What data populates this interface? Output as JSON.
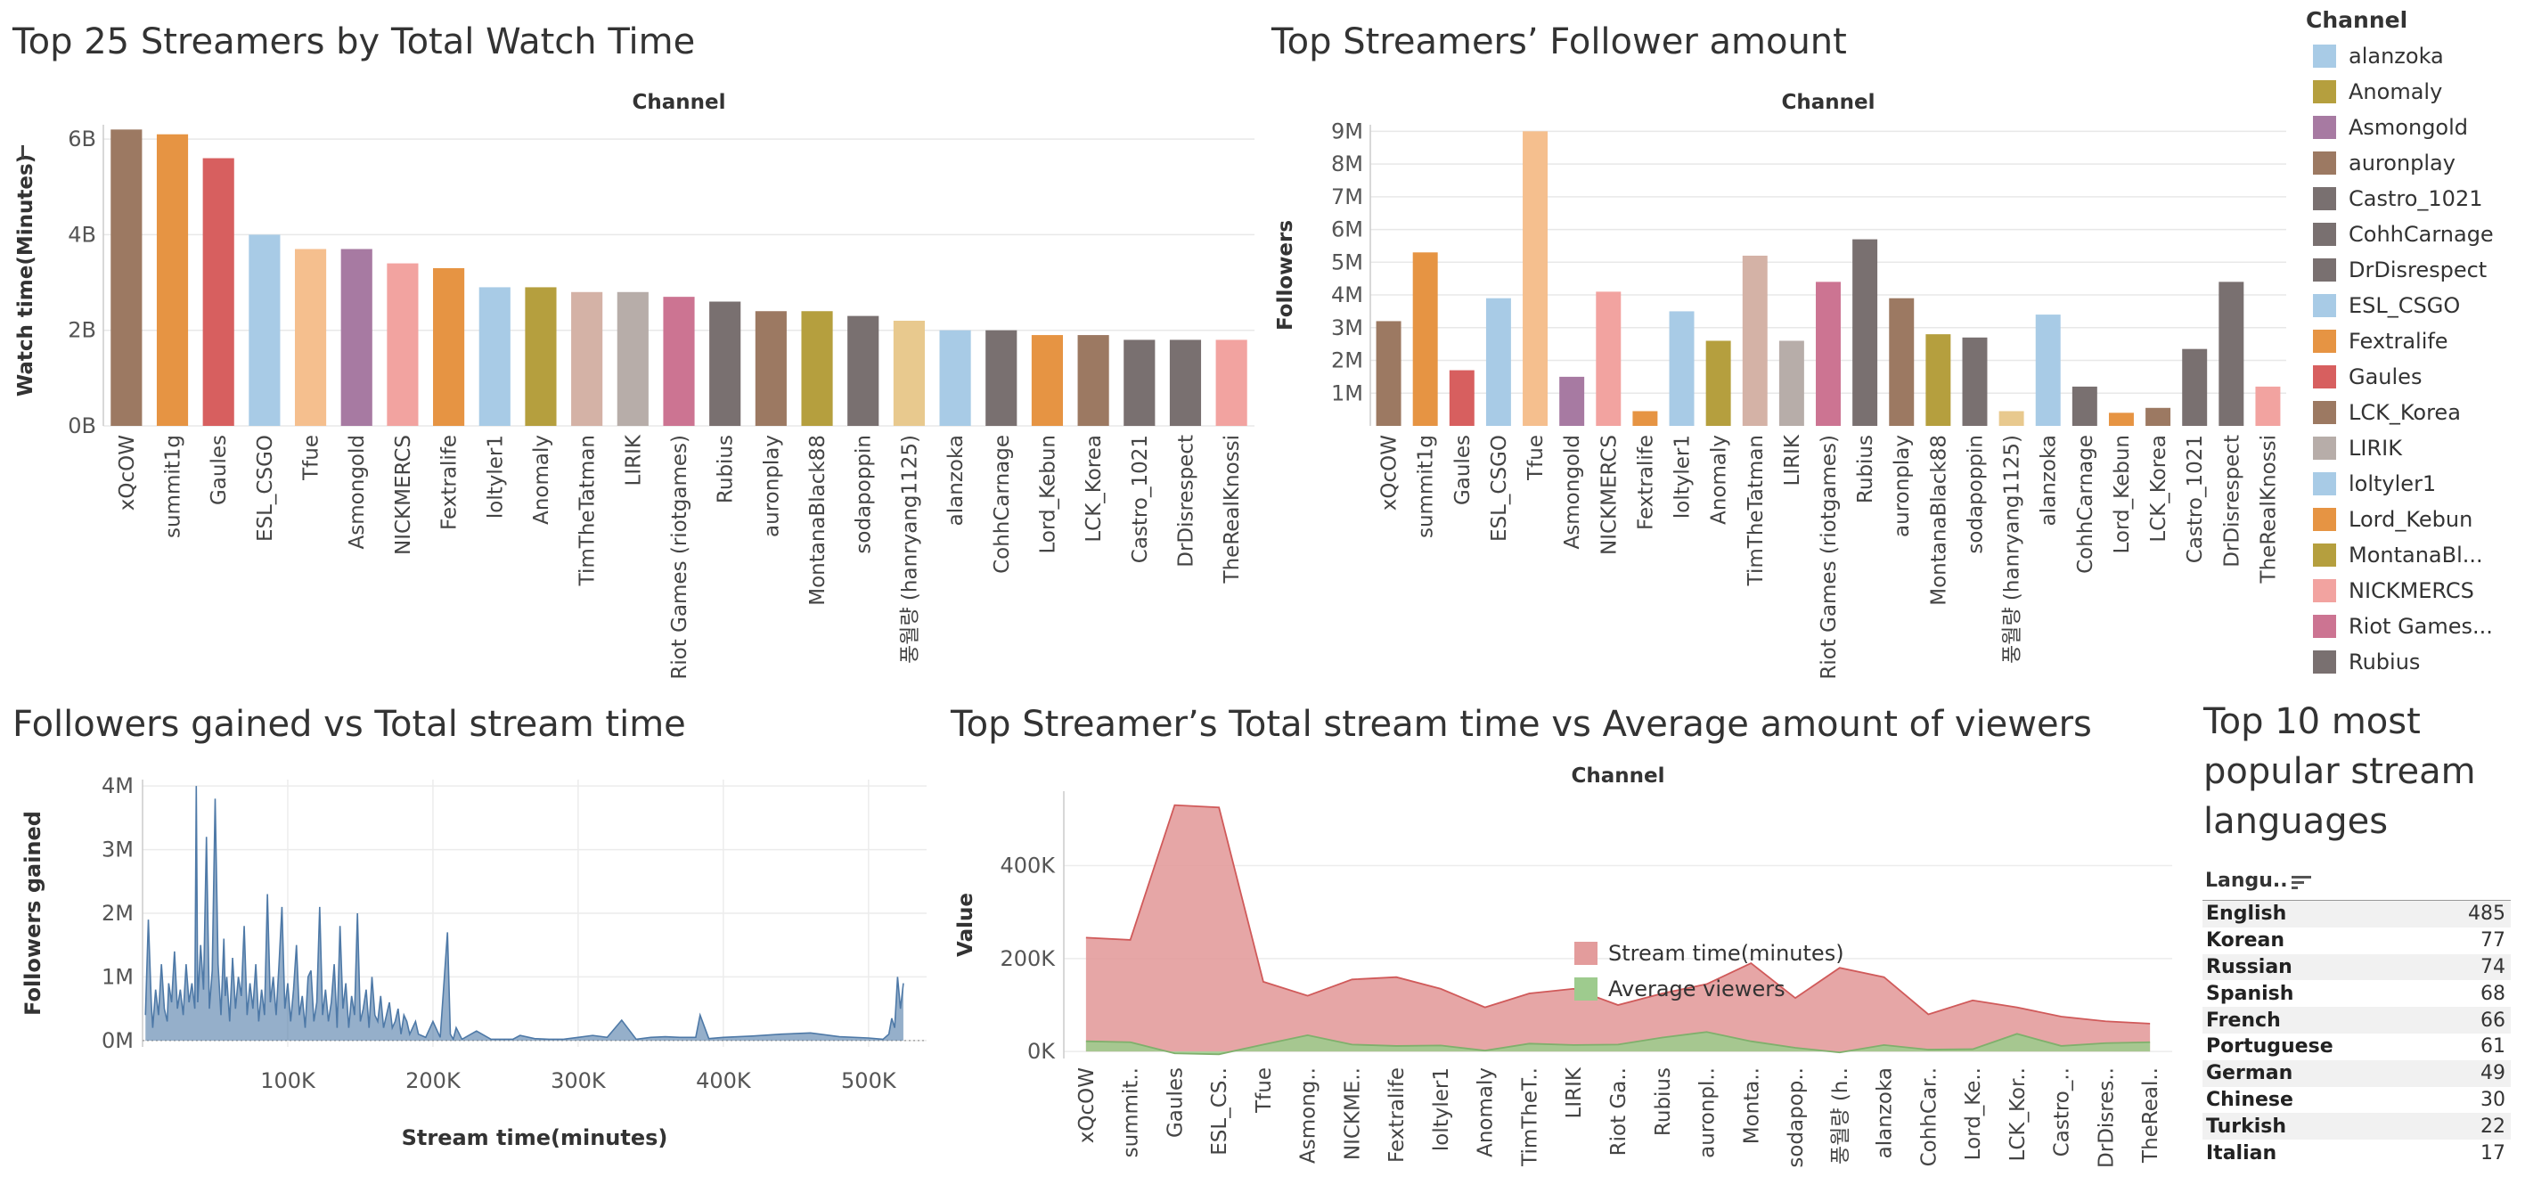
{
  "titles": {
    "watch": "Top 25 Streamers by Total Watch Time",
    "followers": "Top Streamers’ Follower amount",
    "gained": "Followers gained vs Total stream time",
    "streamtime": "Top Streamer’s Total stream time vs Average amount of viewers",
    "languages": "Top 10 most popular stream languages"
  },
  "legend": {
    "title": "Channel",
    "items": [
      {
        "label": "alanzoka",
        "color": "#A8CBE6"
      },
      {
        "label": "Anomaly",
        "color": "#B59F3E"
      },
      {
        "label": "Asmongold",
        "color": "#A77AA2"
      },
      {
        "label": "auronplay",
        "color": "#9C7962"
      },
      {
        "label": "Castro_1021",
        "color": "#797070"
      },
      {
        "label": "CohhCarnage",
        "color": "#797070"
      },
      {
        "label": "DrDisrespect",
        "color": "#797070"
      },
      {
        "label": "ESL_CSGO",
        "color": "#A8CBE6"
      },
      {
        "label": "Fextralife",
        "color": "#E69443"
      },
      {
        "label": "Gaules",
        "color": "#D75F5F"
      },
      {
        "label": "LCK_Korea",
        "color": "#9C7962"
      },
      {
        "label": "LIRIK",
        "color": "#B7ADA9"
      },
      {
        "label": "loltyler1",
        "color": "#A8CBE6"
      },
      {
        "label": "Lord_Kebun",
        "color": "#E69443"
      },
      {
        "label": "MontanaBl...",
        "color": "#B59F3E"
      },
      {
        "label": "NICKMERCS",
        "color": "#F2A3A0"
      },
      {
        "label": "Riot Games...",
        "color": "#CC7492"
      },
      {
        "label": "Rubius",
        "color": "#797070"
      }
    ]
  },
  "languages": {
    "header": "Langu..",
    "rows": [
      {
        "name": "English",
        "value": "485"
      },
      {
        "name": "Korean",
        "value": "77"
      },
      {
        "name": "Russian",
        "value": "74"
      },
      {
        "name": "Spanish",
        "value": "68"
      },
      {
        "name": "French",
        "value": "66"
      },
      {
        "name": "Portuguese",
        "value": "61"
      },
      {
        "name": "German",
        "value": "49"
      },
      {
        "name": "Chinese",
        "value": "30"
      },
      {
        "name": "Turkish",
        "value": "22"
      },
      {
        "name": "Italian",
        "value": "17"
      }
    ]
  },
  "chart_data": [
    {
      "type": "bar",
      "title": "Top 25 Streamers by Total Watch Time",
      "header": "Channel",
      "xlabel": "",
      "ylabel": "Watch time(Minutes)",
      "ylim": [
        0,
        6.3
      ],
      "yticks": [
        {
          "v": 0,
          "label": "0B"
        },
        {
          "v": 2,
          "label": "2B"
        },
        {
          "v": 4,
          "label": "4B"
        },
        {
          "v": 6,
          "label": "6B"
        }
      ],
      "categories": [
        "xQcOW",
        "summit1g",
        "Gaules",
        "ESL_CSGO",
        "Tfue",
        "Asmongold",
        "NICKMERCS",
        "Fextralife",
        "loltyler1",
        "Anomaly",
        "TimTheTatman",
        "LIRIK",
        "Riot Games (riotgames)",
        "Rubius",
        "auronplay",
        "MontanaBlack88",
        "sodapoppin",
        "풍월량 (hanryang1125)",
        "alanzoka",
        "CohhCarnage",
        "Lord_Kebun",
        "LCK_Korea",
        "Castro_1021",
        "DrDisrespect",
        "TheRealKnossi"
      ],
      "values": [
        6.2,
        6.1,
        5.6,
        4.0,
        3.7,
        3.7,
        3.4,
        3.3,
        2.9,
        2.9,
        2.8,
        2.8,
        2.7,
        2.6,
        2.4,
        2.4,
        2.3,
        2.2,
        2.0,
        2.0,
        1.9,
        1.9,
        1.8,
        1.8,
        1.8
      ],
      "colors": [
        "#9C7962",
        "#E69443",
        "#D75F5F",
        "#A8CBE6",
        "#F5BF8E",
        "#A77AA2",
        "#F2A3A0",
        "#E69443",
        "#A8CBE6",
        "#B59F3E",
        "#D4B2A6",
        "#B7ADA9",
        "#CC7492",
        "#797070",
        "#9C7962",
        "#B59F3E",
        "#797070",
        "#E8C98E",
        "#A8CBE6",
        "#797070",
        "#E69443",
        "#9C7962",
        "#797070",
        "#797070",
        "#F2A3A0"
      ]
    },
    {
      "type": "bar",
      "title": "Top Streamers’ Follower amount",
      "header": "Channel",
      "xlabel": "",
      "ylabel": "Followers",
      "ylim": [
        0,
        9.2
      ],
      "yticks": [
        {
          "v": 1,
          "label": "1M"
        },
        {
          "v": 2,
          "label": "2M"
        },
        {
          "v": 3,
          "label": "3M"
        },
        {
          "v": 4,
          "label": "4M"
        },
        {
          "v": 5,
          "label": "5M"
        },
        {
          "v": 6,
          "label": "6M"
        },
        {
          "v": 7,
          "label": "7M"
        },
        {
          "v": 8,
          "label": "8M"
        },
        {
          "v": 9,
          "label": "9M"
        }
      ],
      "categories": [
        "xQcOW",
        "summit1g",
        "Gaules",
        "ESL_CSGO",
        "Tfue",
        "Asmongold",
        "NICKMERCS",
        "Fextralife",
        "loltyler1",
        "Anomaly",
        "TimTheTatman",
        "LIRIK",
        "Riot Games (riotgames)",
        "Rubius",
        "auronplay",
        "MontanaBlack88",
        "sodapoppin",
        "풍월량 (hanryang1125)",
        "alanzoka",
        "CohhCarnage",
        "Lord_Kebun",
        "LCK_Korea",
        "Castro_1021",
        "DrDisrespect",
        "TheRealKnossi"
      ],
      "values": [
        3.2,
        5.3,
        1.7,
        3.9,
        9.0,
        1.5,
        4.1,
        0.45,
        3.5,
        2.6,
        5.2,
        2.6,
        4.4,
        5.7,
        3.9,
        2.8,
        2.7,
        0.45,
        3.4,
        1.2,
        0.4,
        0.55,
        2.35,
        4.4,
        1.2
      ],
      "colors": [
        "#9C7962",
        "#E69443",
        "#D75F5F",
        "#A8CBE6",
        "#F5BF8E",
        "#A77AA2",
        "#F2A3A0",
        "#E69443",
        "#A8CBE6",
        "#B59F3E",
        "#D4B2A6",
        "#B7ADA9",
        "#CC7492",
        "#797070",
        "#9C7962",
        "#B59F3E",
        "#797070",
        "#E8C98E",
        "#A8CBE6",
        "#797070",
        "#E69443",
        "#9C7962",
        "#797070",
        "#797070",
        "#F2A3A0"
      ]
    },
    {
      "type": "area",
      "title": "Followers gained vs Total stream time",
      "xlabel": "Stream time(minutes)",
      "ylabel": "Followers gained",
      "xlim": [
        0,
        540
      ],
      "ylim": [
        -0.1,
        4.1
      ],
      "xticks": [
        {
          "v": 100,
          "label": "100K"
        },
        {
          "v": 200,
          "label": "200K"
        },
        {
          "v": 300,
          "label": "300K"
        },
        {
          "v": 400,
          "label": "400K"
        },
        {
          "v": 500,
          "label": "500K"
        }
      ],
      "yticks": [
        {
          "v": 0,
          "label": "0M"
        },
        {
          "v": 1,
          "label": "1M"
        },
        {
          "v": 2,
          "label": "2M"
        },
        {
          "v": 3,
          "label": "3M"
        },
        {
          "v": 4,
          "label": "4M"
        }
      ],
      "color": "#4E79A7",
      "x": [
        2,
        4,
        6,
        7,
        9,
        11,
        13,
        15,
        17,
        18,
        20,
        22,
        24,
        26,
        28,
        30,
        32,
        34,
        36,
        37,
        38,
        40,
        42,
        44,
        46,
        48,
        50,
        52,
        54,
        56,
        57,
        58,
        60,
        62,
        64,
        66,
        68,
        70,
        72,
        74,
        76,
        78,
        80,
        82,
        84,
        86,
        88,
        90,
        92,
        94,
        96,
        98,
        100,
        102,
        104,
        106,
        108,
        110,
        112,
        114,
        116,
        118,
        120,
        122,
        124,
        126,
        128,
        130,
        132,
        134,
        136,
        138,
        140,
        142,
        144,
        146,
        148,
        150,
        152,
        154,
        156,
        158,
        160,
        162,
        164,
        166,
        168,
        170,
        172,
        174,
        176,
        178,
        180,
        182,
        184,
        186,
        188,
        190,
        195,
        200,
        205,
        210,
        212,
        214,
        216,
        220,
        230,
        240,
        250,
        255,
        260,
        270,
        280,
        290,
        300,
        310,
        320,
        330,
        340,
        350,
        360,
        370,
        380,
        381,
        384,
        390,
        400,
        420,
        440,
        460,
        480,
        500,
        510,
        514,
        516,
        518,
        520,
        522,
        524
      ],
      "y": [
        0.4,
        1.9,
        0.6,
        0.2,
        0.8,
        0.4,
        1.2,
        0.5,
        0.3,
        0.9,
        0.6,
        1.4,
        0.5,
        0.8,
        0.4,
        1.2,
        0.6,
        0.9,
        0.5,
        4.0,
        0.6,
        1.5,
        0.8,
        3.2,
        0.5,
        1.1,
        3.8,
        1.2,
        0.4,
        1.6,
        0.7,
        1.0,
        0.3,
        1.3,
        0.5,
        1.0,
        0.7,
        1.8,
        0.4,
        0.9,
        0.5,
        1.2,
        0.3,
        0.8,
        0.4,
        2.3,
        0.6,
        1.0,
        0.4,
        1.2,
        2.1,
        0.5,
        0.9,
        0.3,
        0.8,
        1.5,
        0.4,
        0.7,
        0.2,
        1.0,
        1.1,
        0.3,
        0.6,
        2.1,
        0.4,
        0.8,
        0.3,
        0.6,
        1.2,
        0.2,
        1.8,
        0.5,
        0.9,
        0.2,
        0.7,
        0.4,
        2.0,
        0.3,
        0.5,
        0.8,
        0.2,
        1.0,
        0.4,
        0.3,
        0.7,
        0.2,
        0.4,
        0.6,
        0.2,
        0.3,
        0.5,
        0.1,
        0.4,
        0.3,
        0.1,
        0.2,
        0.3,
        0.1,
        0.05,
        0.3,
        0.05,
        1.7,
        0.1,
        0.02,
        0.2,
        0.02,
        0.15,
        0.02,
        0.02,
        0.02,
        0.08,
        0.03,
        0.02,
        0.02,
        0.05,
        0.08,
        0.05,
        0.32,
        0.02,
        0.05,
        0.06,
        0.05,
        0.05,
        0.05,
        0.4,
        0.03,
        0.05,
        0.07,
        0.1,
        0.12,
        0.06,
        0.04,
        0.02,
        0.1,
        0.35,
        0.2,
        1.0,
        0.5,
        0.9
      ]
    },
    {
      "type": "area",
      "title": "Top Streamer’s Total stream time vs Average amount of viewers",
      "header": "Channel",
      "xlabel": "",
      "ylabel": "Value",
      "ylim": [
        -15,
        560
      ],
      "yticks": [
        {
          "v": 0,
          "label": "0K"
        },
        {
          "v": 200,
          "label": "200K"
        },
        {
          "v": 400,
          "label": "400K"
        }
      ],
      "categories": [
        "xQcOW",
        "summit..",
        "Gaules",
        "ESL_CS..",
        "Tfue",
        "Asmong..",
        "NICKME..",
        "Fextralife",
        "loltyler1",
        "Anomaly",
        "TimTheT..",
        "LIRIK",
        "Riot Ga..",
        "Rubius",
        "auronpl..",
        "Monta..",
        "sodapop..",
        "풍월량 (h..",
        "alanzoka",
        "CohhCar..",
        "Lord_Ke..",
        "LCK_Kor..",
        "Castro_..",
        "DrDisres..",
        "TheReal.."
      ],
      "series": [
        {
          "name": "Stream time(minutes)",
          "color": "#E39C9C",
          "line": "#D05A5A",
          "values": [
            245,
            240,
            530,
            525,
            150,
            120,
            155,
            160,
            135,
            95,
            125,
            135,
            100,
            125,
            145,
            190,
            115,
            180,
            160,
            80,
            110,
            95,
            75,
            65,
            60
          ]
        },
        {
          "name": "Average viewers",
          "color": "#9ECB8E",
          "line": "#7FB06C",
          "values": [
            22,
            20,
            -4,
            -6,
            15,
            35,
            15,
            12,
            13,
            2,
            17,
            14,
            15,
            30,
            42,
            22,
            8,
            -2,
            14,
            4,
            5,
            38,
            12,
            18,
            20
          ]
        }
      ]
    }
  ]
}
